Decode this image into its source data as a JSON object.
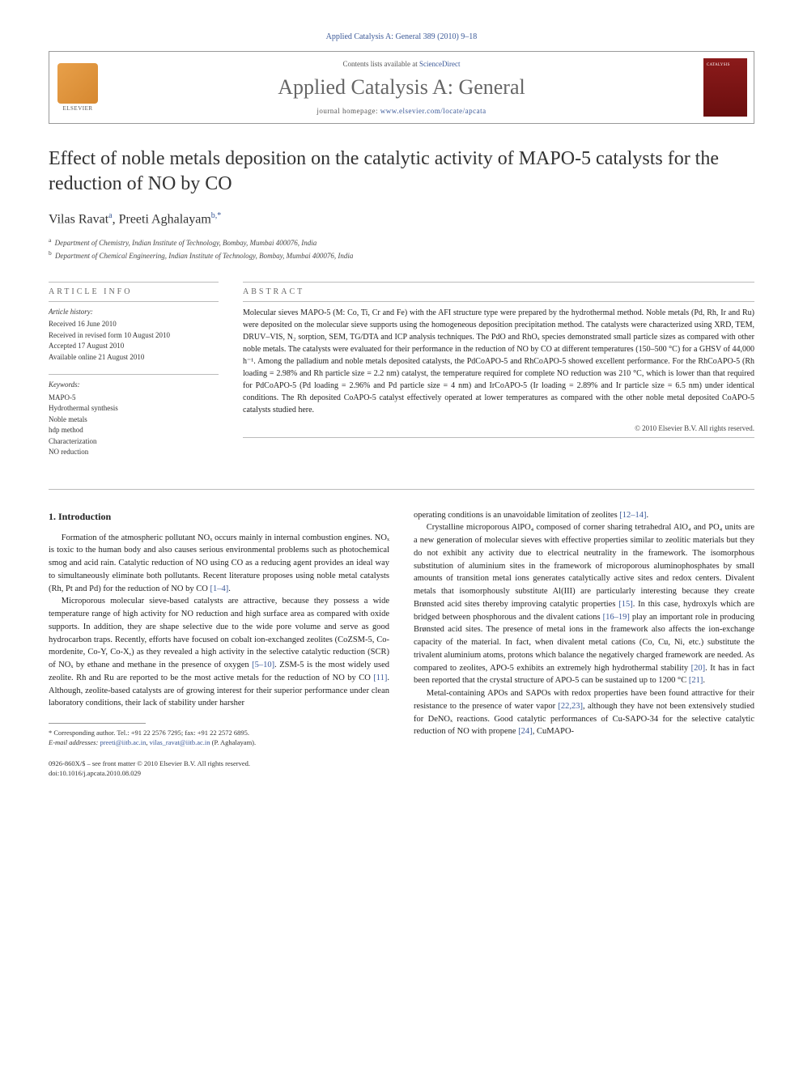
{
  "journal_header": "Applied Catalysis A: General 389 (2010) 9–18",
  "contents_prefix": "Contents lists available at ",
  "contents_link": "ScienceDirect",
  "journal_title": "Applied Catalysis A: General",
  "homepage_prefix": "journal homepage: ",
  "homepage_url": "www.elsevier.com/locate/apcata",
  "elsevier_label": "ELSEVIER",
  "article_title": "Effect of noble metals deposition on the catalytic activity of MAPO-5 catalysts for the reduction of NO by CO",
  "authors_html": "Vilas Ravat<sup>a</sup>, Preeti Aghalayam<sup>b,*</sup>",
  "affiliations": {
    "a": "Department of Chemistry, Indian Institute of Technology, Bombay, Mumbai 400076, India",
    "b": "Department of Chemical Engineering, Indian Institute of Technology, Bombay, Mumbai 400076, India"
  },
  "article_info_label": "ARTICLE INFO",
  "abstract_label": "ABSTRACT",
  "history_label": "Article history:",
  "history": [
    "Received 16 June 2010",
    "Received in revised form 10 August 2010",
    "Accepted 17 August 2010",
    "Available online 21 August 2010"
  ],
  "keywords_label": "Keywords:",
  "keywords": [
    "MAPO-5",
    "Hydrothermal synthesis",
    "Noble metals",
    "hdp method",
    "Characterization",
    "NO reduction"
  ],
  "abstract_text": "Molecular sieves MAPO-5 (M: Co, Ti, Cr and Fe) with the AFI structure type were prepared by the hydrothermal method. Noble metals (Pd, Rh, Ir and Ru) were deposited on the molecular sieve supports using the homogeneous deposition precipitation method. The catalysts were characterized using XRD, TEM, DRUV–VIS, N₂ sorption, SEM, TG/DTA and ICP analysis techniques. The PdO and RhOₓ species demonstrated small particle sizes as compared with other noble metals. The catalysts were evaluated for their performance in the reduction of NO by CO at different temperatures (150–500 °C) for a GHSV of 44,000 h⁻¹. Among the palladium and noble metals deposited catalysts, the PdCoAPO-5 and RhCoAPO-5 showed excellent performance. For the RhCoAPO-5 (Rh loading = 2.98% and Rh particle size = 2.2 nm) catalyst, the temperature required for complete NO reduction was 210 °C, which is lower than that required for PdCoAPO-5 (Pd loading = 2.96% and Pd particle size = 4 nm) and IrCoAPO-5 (Ir loading = 2.89% and Ir particle size = 6.5 nm) under identical conditions. The Rh deposited CoAPO-5 catalyst effectively operated at lower temperatures as compared with the other noble metal deposited CoAPO-5 catalysts studied here.",
  "copyright": "© 2010 Elsevier B.V. All rights reserved.",
  "section_1_title": "1. Introduction",
  "col1": {
    "p1": "Formation of the atmospheric pollutant NOₓ occurs mainly in internal combustion engines. NOₓ is toxic to the human body and also causes serious environmental problems such as photochemical smog and acid rain. Catalytic reduction of NO using CO as a reducing agent provides an ideal way to simultaneously eliminate both pollutants. Recent literature proposes using noble metal catalysts (Rh, Pt and Pd) for the reduction of NO by CO ",
    "p1_ref": "[1–4]",
    "p1_end": ".",
    "p2a": "Microporous molecular sieve-based catalysts are attractive, because they possess a wide temperature range of high activity for NO reduction and high surface area as compared with oxide supports. In addition, they are shape selective due to the wide pore volume and serve as good hydrocarbon traps. Recently, efforts have focused on cobalt ion-exchanged zeolites (CoZSM-5, Co-mordenite, Co-Y, Co-X,) as they revealed a high activity in the selective catalytic reduction (SCR) of NOₓ by ethane and methane in the presence of oxygen ",
    "p2_ref1": "[5–10]",
    "p2b": ". ZSM-5 is the most widely used zeolite. Rh and Ru are reported to be the most active metals for the reduction of NO by CO ",
    "p2_ref2": "[11]",
    "p2c": ". Although, zeolite-based catalysts are of growing interest for their superior performance under clean laboratory conditions, their lack of stability under harsher"
  },
  "col2": {
    "p1a": "operating conditions is an unavoidable limitation of zeolites ",
    "p1_ref": "[12–14]",
    "p1b": ".",
    "p2a": "Crystalline microporous AlPO₄ composed of corner sharing tetrahedral AlO₄ and PO₄ units are a new generation of molecular sieves with effective properties similar to zeolitic materials but they do not exhibit any activity due to electrical neutrality in the framework. The isomorphous substitution of aluminium sites in the framework of microporous aluminophosphates by small amounts of transition metal ions generates catalytically active sites and redox centers. Divalent metals that isomorphously substitute Al(III) are particularly interesting because they create Brønsted acid sites thereby improving catalytic properties ",
    "p2_ref1": "[15]",
    "p2b": ". In this case, hydroxyls which are bridged between phosphorous and the divalent cations ",
    "p2_ref2": "[16–19]",
    "p2c": " play an important role in producing Brønsted acid sites. The presence of metal ions in the framework also affects the ion-exchange capacity of the material. In fact, when divalent metal cations (Co, Cu, Ni, etc.) substitute the trivalent aluminium atoms, protons which balance the negatively charged framework are needed. As compared to zeolites, APO-5 exhibits an extremely high hydrothermal stability ",
    "p2_ref3": "[20]",
    "p2d": ". It has in fact been reported that the crystal structure of APO-5 can be sustained up to 1200 °C ",
    "p2_ref4": "[21]",
    "p2e": ".",
    "p3a": "Metal-containing APOs and SAPOs with redox properties have been found attractive for their resistance to the presence of water vapor ",
    "p3_ref1": "[22,23]",
    "p3b": ", although they have not been extensively studied for DeNOₓ reactions. Good catalytic performances of Cu-SAPO-34 for the selective catalytic reduction of NO with propene ",
    "p3_ref2": "[24]",
    "p3c": ", CuMAPO-"
  },
  "corr_author": "* Corresponding author. Tel.: +91 22 2576 7295; fax: +91 22 2572 6895.",
  "emails_label": "E-mail addresses: ",
  "email1": "preeti@iitb.ac.in",
  "email_sep": ", ",
  "email2": "vilas_ravat@iitb.ac.in",
  "email_paren": " (P. Aghalayam).",
  "issn_line": "0926-860X/$ – see front matter © 2010 Elsevier B.V. All rights reserved.",
  "doi_line": "doi:10.1016/j.apcata.2010.08.029",
  "colors": {
    "link": "#3b5998",
    "text": "#222222",
    "muted": "#666666",
    "rule": "#bbbbbb",
    "cover_bg": "#8b1a1a"
  }
}
